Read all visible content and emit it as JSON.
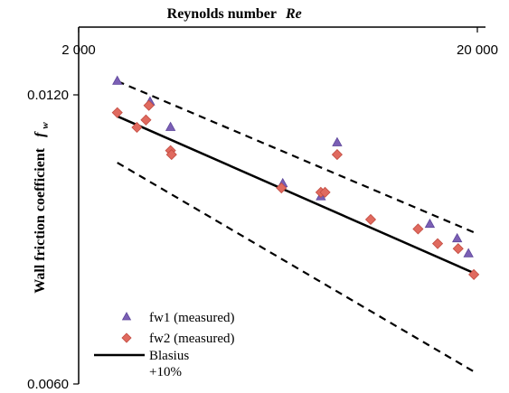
{
  "chart_data": {
    "type": "scatter",
    "title": "",
    "xlabel": "Reynolds number",
    "xlabel_symbol": "Re",
    "ylabel": "Wall friction coefficient",
    "ylabel_symbol": "f",
    "ylabel_subscript": "w",
    "xscale": "log",
    "yscale": "log",
    "xlim": [
      2000,
      20000
    ],
    "ylim": [
      0.006,
      0.013
    ],
    "x_axis_position": "top",
    "grid": false,
    "legend_position": "bottom-left",
    "x_ticks": [
      {
        "value": 2000,
        "label": "2 000"
      },
      {
        "value": 20000,
        "label": "20 000"
      }
    ],
    "y_ticks": [
      {
        "value": 0.012,
        "label": "0.0120"
      },
      {
        "value": 0.006,
        "label": "0.0060"
      }
    ],
    "series": [
      {
        "name": "fw1 (measured)",
        "kind": "points",
        "marker": "triangle",
        "color": "#7b5fb5",
        "points": [
          [
            2500,
            0.0124
          ],
          [
            3020,
            0.0118
          ],
          [
            3400,
            0.0111
          ],
          [
            6500,
            0.0097
          ],
          [
            8100,
            0.0094
          ],
          [
            8900,
            0.0107
          ],
          [
            15200,
            0.0088
          ],
          [
            17800,
            0.0085
          ],
          [
            19000,
            0.0082
          ]
        ]
      },
      {
        "name": "fw2 (measured)",
        "kind": "points",
        "marker": "diamond",
        "color": "#e06a5f",
        "points": [
          [
            2500,
            0.0115
          ],
          [
            2800,
            0.0111
          ],
          [
            2950,
            0.0113
          ],
          [
            3000,
            0.0117
          ],
          [
            3400,
            0.0105
          ],
          [
            3420,
            0.0104
          ],
          [
            6450,
            0.0096
          ],
          [
            8100,
            0.0095
          ],
          [
            8300,
            0.0095
          ],
          [
            8900,
            0.0104
          ],
          [
            10800,
            0.0089
          ],
          [
            14200,
            0.0087
          ],
          [
            15900,
            0.0084
          ],
          [
            17900,
            0.0083
          ],
          [
            19600,
            0.0078
          ]
        ]
      },
      {
        "name": "Blasius",
        "kind": "line",
        "style": "solid",
        "color": "#000000",
        "points": [
          [
            2500,
            0.0114
          ],
          [
            20000,
            0.0078
          ]
        ]
      },
      {
        "name": "+10%",
        "kind": "line",
        "style": "dashed",
        "color": "#000000",
        "points": [
          [
            2500,
            0.0124
          ],
          [
            20000,
            0.0086
          ]
        ]
      },
      {
        "name": "",
        "kind": "line",
        "style": "dashed",
        "color": "#000000",
        "points": [
          [
            2500,
            0.0102
          ],
          [
            20000,
            0.00615
          ]
        ]
      }
    ]
  }
}
